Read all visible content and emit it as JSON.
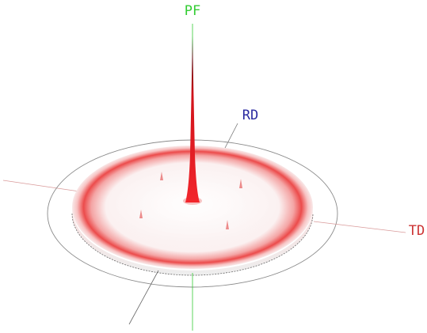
{
  "figure": {
    "type": "3d pole figure surface plot",
    "axes": {
      "pf": {
        "label": "PF",
        "color": "#33cc33"
      },
      "rd": {
        "label": "RD",
        "color": "#2a2aa0"
      },
      "td": {
        "label": "TD",
        "color": "#cc3333"
      }
    },
    "colors": {
      "peak_base": "#e8141c",
      "peak_tip": "#000000",
      "ring": "#f04a4a",
      "disc_fill": "#fbf1f1",
      "outer_ellipse": "#8a8a8a",
      "back_axis": "#d99a9a",
      "front_axis": "#777777"
    }
  }
}
